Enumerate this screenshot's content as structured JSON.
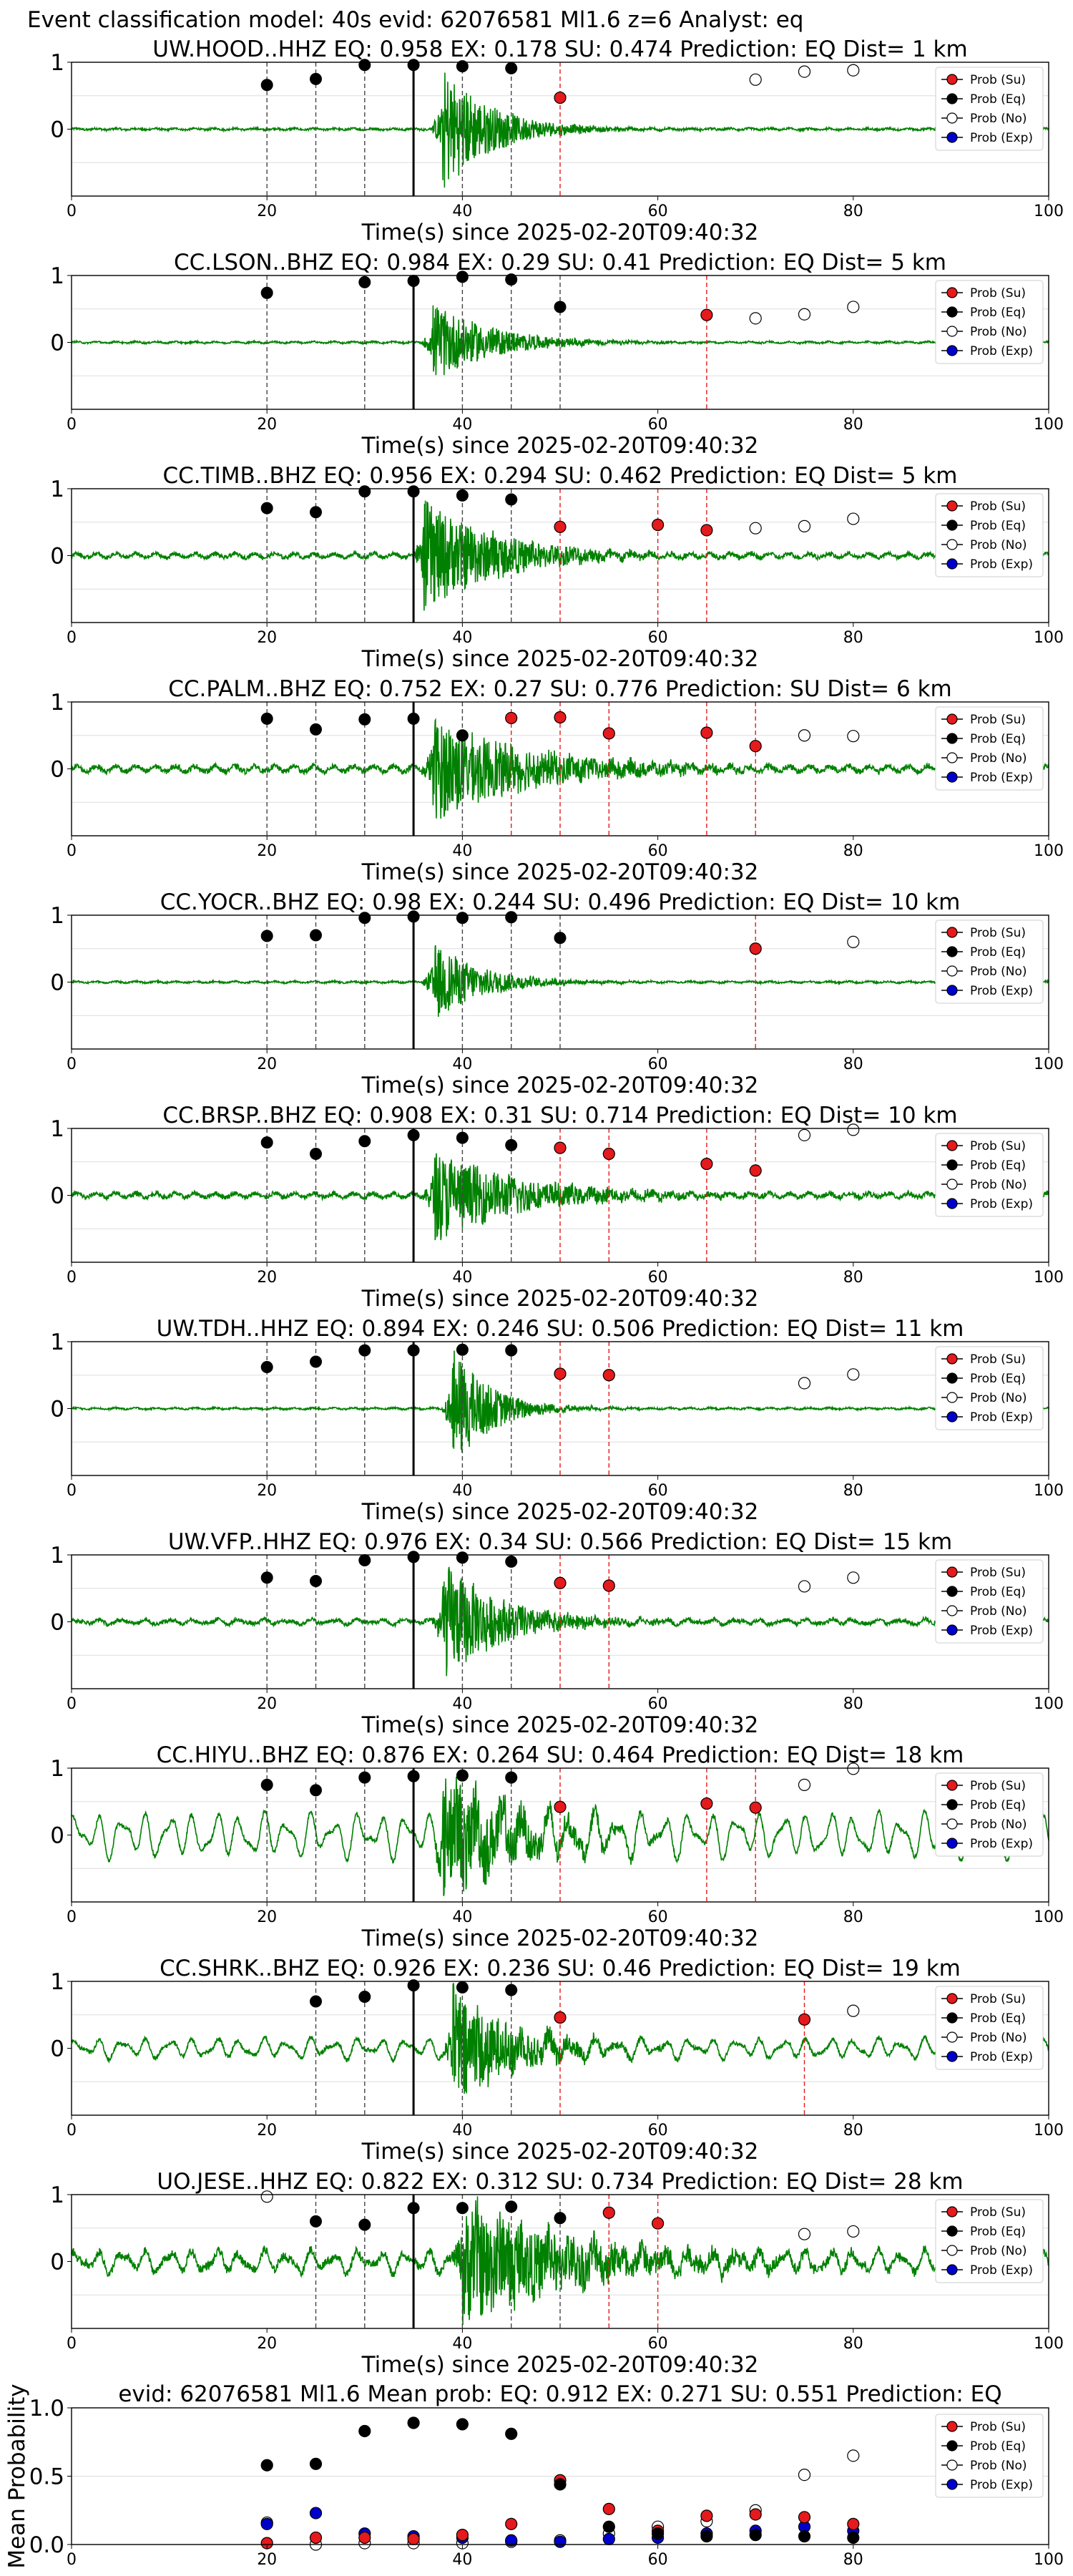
{
  "figure_title": "Event classification model: 40s evid: 62076581 Ml1.6 z=6 Analyst: eq",
  "legend": {
    "labels": [
      "Prob (Su)",
      "Prob (Eq)",
      "Prob (No)",
      "Prob (Exp)"
    ],
    "colors": [
      "#e41a1c",
      "#000000",
      "#ffffff",
      "#0000cc"
    ]
  },
  "colors": {
    "waveform": "#008000",
    "eq_marker": "#000000",
    "su_marker": "#e41a1c",
    "no_marker": "#ffffff",
    "exp_marker": "#0000cc",
    "grid": "#dddddd"
  },
  "chart_data": [
    {
      "type": "line",
      "title": "UW.HOOD..HHZ   EQ: 0.958  EX: 0.178  SU: 0.474   Prediction: EQ    Dist= 1 km",
      "xlabel": "Time(s) since 2025-02-20T09:40:32",
      "xlim": [
        0,
        100
      ],
      "ylim": [
        -1,
        1
      ],
      "xticks": [
        "0",
        "20",
        "40",
        "60",
        "80",
        "100"
      ],
      "yticks": [
        "1",
        "0"
      ],
      "pick_time": 35,
      "onset": 38,
      "amplitude": 0.95,
      "decay": 5,
      "noise": 0.015,
      "background": "flat",
      "bg_amp": 0.01,
      "eq_points": [
        [
          20,
          0.66
        ],
        [
          25,
          0.75
        ],
        [
          30,
          0.96
        ],
        [
          35,
          0.96
        ],
        [
          40,
          0.94
        ],
        [
          45,
          0.91
        ]
      ],
      "su_points": [
        [
          50,
          0.47
        ]
      ],
      "no_points": [
        [
          70,
          0.74
        ],
        [
          75,
          0.86
        ],
        [
          80,
          0.88
        ]
      ]
    },
    {
      "type": "line",
      "title": "CC.LSON..BHZ   EQ: 0.984  EX: 0.29  SU: 0.41   Prediction: EQ    Dist= 5 km",
      "xlabel": "Time(s) since 2025-02-20T09:40:32",
      "xlim": [
        0,
        100
      ],
      "ylim": [
        -1,
        1
      ],
      "xticks": [
        "0",
        "20",
        "40",
        "60",
        "80",
        "100"
      ],
      "yticks": [
        "1",
        "0"
      ],
      "pick_time": 35,
      "onset": 37,
      "amplitude": 0.6,
      "decay": 6,
      "noise": 0.012,
      "background": "flat",
      "bg_amp": 0.01,
      "eq_points": [
        [
          20,
          0.74
        ],
        [
          30,
          0.9
        ],
        [
          35,
          0.92
        ],
        [
          40,
          0.98
        ],
        [
          45,
          0.94
        ],
        [
          50,
          0.53
        ]
      ],
      "su_points": [
        [
          65,
          0.41
        ]
      ],
      "no_points": [
        [
          70,
          0.36
        ],
        [
          75,
          0.42
        ],
        [
          80,
          0.53
        ]
      ]
    },
    {
      "type": "line",
      "title": "CC.TIMB..BHZ   EQ: 0.956  EX: 0.294  SU: 0.462   Prediction: EQ    Dist= 5 km",
      "xlabel": "Time(s) since 2025-02-20T09:40:32",
      "xlim": [
        0,
        100
      ],
      "ylim": [
        -1,
        1
      ],
      "xticks": [
        "0",
        "20",
        "40",
        "60",
        "80",
        "100"
      ],
      "yticks": [
        "1",
        "0"
      ],
      "pick_time": 35,
      "onset": 36,
      "amplitude": 0.85,
      "decay": 8,
      "noise": 0.03,
      "background": "flat",
      "bg_amp": 0.03,
      "eq_points": [
        [
          20,
          0.71
        ],
        [
          25,
          0.65
        ],
        [
          30,
          0.96
        ],
        [
          35,
          0.96
        ],
        [
          40,
          0.9
        ],
        [
          45,
          0.84
        ]
      ],
      "su_points": [
        [
          50,
          0.43
        ],
        [
          60,
          0.46
        ],
        [
          65,
          0.38
        ]
      ],
      "no_points": [
        [
          70,
          0.41
        ],
        [
          75,
          0.44
        ],
        [
          80,
          0.55
        ]
      ]
    },
    {
      "type": "line",
      "title": "CC.PALM..BHZ   EQ: 0.752  EX: 0.27  SU: 0.776   Prediction: SU    Dist= 6 km",
      "xlabel": "Time(s) since 2025-02-20T09:40:32",
      "xlim": [
        0,
        100
      ],
      "ylim": [
        -1,
        1
      ],
      "xticks": [
        "0",
        "20",
        "40",
        "60",
        "80",
        "100"
      ],
      "yticks": [
        "1",
        "0"
      ],
      "pick_time": 35,
      "onset": 37,
      "amplitude": 0.8,
      "decay": 10,
      "noise": 0.04,
      "background": "flat",
      "bg_amp": 0.04,
      "eq_points": [
        [
          20,
          0.75
        ],
        [
          25,
          0.59
        ],
        [
          30,
          0.74
        ],
        [
          35,
          0.75
        ],
        [
          40,
          0.5
        ]
      ],
      "su_points": [
        [
          45,
          0.76
        ],
        [
          50,
          0.77
        ],
        [
          55,
          0.53
        ],
        [
          65,
          0.54
        ],
        [
          70,
          0.34
        ]
      ],
      "no_points": [
        [
          75,
          0.5
        ],
        [
          80,
          0.49
        ]
      ]
    },
    {
      "type": "line",
      "title": "CC.YOCR..BHZ   EQ: 0.98  EX: 0.244  SU: 0.496   Prediction: EQ    Dist= 10 km",
      "xlabel": "Time(s) since 2025-02-20T09:40:32",
      "xlim": [
        0,
        100
      ],
      "ylim": [
        -1,
        1
      ],
      "xticks": [
        "0",
        "20",
        "40",
        "60",
        "80",
        "100"
      ],
      "yticks": [
        "1",
        "0"
      ],
      "pick_time": 35,
      "onset": 37,
      "amplitude": 0.6,
      "decay": 5,
      "noise": 0.012,
      "background": "flat",
      "bg_amp": 0.01,
      "eq_points": [
        [
          20,
          0.69
        ],
        [
          25,
          0.7
        ],
        [
          30,
          0.96
        ],
        [
          35,
          0.98
        ],
        [
          40,
          0.96
        ],
        [
          45,
          0.97
        ],
        [
          50,
          0.66
        ]
      ],
      "su_points": [
        [
          70,
          0.5
        ]
      ],
      "no_points": [
        [
          80,
          0.6
        ]
      ]
    },
    {
      "type": "line",
      "title": "CC.BRSP..BHZ   EQ: 0.908  EX: 0.31  SU: 0.714   Prediction: EQ    Dist= 10 km",
      "xlabel": "Time(s) since 2025-02-20T09:40:32",
      "xlim": [
        0,
        100
      ],
      "ylim": [
        -1,
        1
      ],
      "xticks": [
        "0",
        "20",
        "40",
        "60",
        "80",
        "100"
      ],
      "yticks": [
        "1",
        "0"
      ],
      "pick_time": 35,
      "onset": 37,
      "amplitude": 0.7,
      "decay": 9,
      "noise": 0.035,
      "background": "flat",
      "bg_amp": 0.03,
      "eq_points": [
        [
          20,
          0.79
        ],
        [
          25,
          0.62
        ],
        [
          30,
          0.81
        ],
        [
          35,
          0.9
        ],
        [
          40,
          0.86
        ],
        [
          45,
          0.75
        ]
      ],
      "su_points": [
        [
          50,
          0.71
        ],
        [
          55,
          0.62
        ],
        [
          65,
          0.47
        ],
        [
          70,
          0.37
        ]
      ],
      "no_points": [
        [
          75,
          0.9
        ],
        [
          80,
          0.98
        ]
      ]
    },
    {
      "type": "line",
      "title": "UW.TDH..HHZ   EQ: 0.894  EX: 0.246  SU: 0.506   Prediction: EQ    Dist= 11 km",
      "xlabel": "Time(s) since 2025-02-20T09:40:32",
      "xlim": [
        0,
        100
      ],
      "ylim": [
        -1,
        1
      ],
      "xticks": [
        "0",
        "20",
        "40",
        "60",
        "80",
        "100"
      ],
      "yticks": [
        "1",
        "0"
      ],
      "pick_time": 35,
      "onset": 39,
      "amplitude": 0.9,
      "decay": 4,
      "noise": 0.012,
      "background": "flat",
      "bg_amp": 0.01,
      "eq_points": [
        [
          20,
          0.62
        ],
        [
          25,
          0.7
        ],
        [
          30,
          0.87
        ],
        [
          35,
          0.87
        ],
        [
          40,
          0.88
        ],
        [
          45,
          0.87
        ]
      ],
      "su_points": [
        [
          50,
          0.52
        ],
        [
          55,
          0.5
        ]
      ],
      "no_points": [
        [
          75,
          0.38
        ],
        [
          80,
          0.51
        ]
      ]
    },
    {
      "type": "line",
      "title": "UW.VFP..HHZ   EQ: 0.976  EX: 0.34  SU: 0.566   Prediction: EQ    Dist= 15 km",
      "xlabel": "Time(s) since 2025-02-20T09:40:32",
      "xlim": [
        0,
        100
      ],
      "ylim": [
        -1,
        1
      ],
      "xticks": [
        "0",
        "20",
        "40",
        "60",
        "80",
        "100"
      ],
      "yticks": [
        "1",
        "0"
      ],
      "pick_time": 35,
      "onset": 38,
      "amplitude": 0.9,
      "decay": 6,
      "noise": 0.03,
      "background": "wavy",
      "bg_amp": 0.05,
      "eq_points": [
        [
          20,
          0.66
        ],
        [
          25,
          0.61
        ],
        [
          30,
          0.92
        ],
        [
          35,
          0.97
        ],
        [
          40,
          0.96
        ],
        [
          45,
          0.9
        ]
      ],
      "su_points": [
        [
          50,
          0.58
        ],
        [
          55,
          0.54
        ]
      ],
      "no_points": [
        [
          75,
          0.53
        ],
        [
          80,
          0.66
        ]
      ]
    },
    {
      "type": "line",
      "title": "CC.HIYU..BHZ   EQ: 0.876  EX: 0.264  SU: 0.464   Prediction: EQ    Dist= 18 km",
      "xlabel": "Time(s) since 2025-02-20T09:40:32",
      "xlim": [
        0,
        100
      ],
      "ylim": [
        -1,
        1
      ],
      "xticks": [
        "0",
        "20",
        "40",
        "60",
        "80",
        "100"
      ],
      "yticks": [
        "1",
        "0"
      ],
      "pick_time": 35,
      "onset": 38,
      "amplitude": 0.95,
      "decay": 7,
      "noise": 0.03,
      "background": "wavy",
      "bg_amp": 0.4,
      "eq_points": [
        [
          20,
          0.75
        ],
        [
          25,
          0.67
        ],
        [
          30,
          0.86
        ],
        [
          35,
          0.88
        ],
        [
          40,
          0.89
        ],
        [
          45,
          0.86
        ]
      ],
      "su_points": [
        [
          50,
          0.42
        ],
        [
          65,
          0.47
        ],
        [
          70,
          0.41
        ]
      ],
      "no_points": [
        [
          75,
          0.75
        ],
        [
          80,
          0.99
        ]
      ]
    },
    {
      "type": "line",
      "title": "CC.SHRK..BHZ   EQ: 0.926  EX: 0.236  SU: 0.46   Prediction: EQ    Dist= 19 km",
      "xlabel": "Time(s) since 2025-02-20T09:40:32",
      "xlim": [
        0,
        100
      ],
      "ylim": [
        -1,
        1
      ],
      "xticks": [
        "0",
        "20",
        "40",
        "60",
        "80",
        "100"
      ],
      "yticks": [
        "1",
        "0"
      ],
      "pick_time": 35,
      "onset": 39,
      "amplitude": 0.95,
      "decay": 6,
      "noise": 0.03,
      "background": "wavy",
      "bg_amp": 0.18,
      "eq_points": [
        [
          25,
          0.7
        ],
        [
          30,
          0.77
        ],
        [
          35,
          0.94
        ],
        [
          40,
          0.91
        ],
        [
          45,
          0.87
        ]
      ],
      "su_points": [
        [
          50,
          0.46
        ],
        [
          75,
          0.43
        ]
      ],
      "no_points": [
        [
          80,
          0.56
        ]
      ]
    },
    {
      "type": "line",
      "title": "UO.JESE..HHZ   EQ: 0.822  EX: 0.312  SU: 0.734   Prediction: EQ    Dist= 28 km",
      "xlabel": "Time(s) since 2025-02-20T09:40:32",
      "xlim": [
        0,
        100
      ],
      "ylim": [
        -1,
        1
      ],
      "xticks": [
        "0",
        "20",
        "40",
        "60",
        "80",
        "100"
      ],
      "yticks": [
        "1",
        "0"
      ],
      "pick_time": 35,
      "onset": 40,
      "amplitude": 0.95,
      "decay": 12,
      "noise": 0.06,
      "background": "wavy",
      "bg_amp": 0.2,
      "eq_points": [
        [
          25,
          0.6
        ],
        [
          30,
          0.55
        ],
        [
          35,
          0.8
        ],
        [
          40,
          0.8
        ],
        [
          45,
          0.82
        ],
        [
          50,
          0.65
        ]
      ],
      "su_points": [
        [
          55,
          0.73
        ],
        [
          60,
          0.57
        ]
      ],
      "no_points": [
        [
          20,
          0.97
        ],
        [
          75,
          0.41
        ],
        [
          80,
          0.45
        ]
      ]
    },
    {
      "type": "scatter",
      "title": "evid: 62076581  Ml1.6   Mean prob:   EQ: 0.912  EX: 0.271  SU: 0.551   Prediction: EQ",
      "ylabel": "Mean Probability",
      "xlim": [
        0,
        100
      ],
      "ylim": [
        0,
        1
      ],
      "xticks": [
        "0",
        "20",
        "40",
        "60",
        "80",
        "100"
      ],
      "yticks": [
        "0.0",
        "0.5",
        "1.0"
      ],
      "eq_points": [
        [
          20,
          0.58
        ],
        [
          25,
          0.59
        ],
        [
          30,
          0.83
        ],
        [
          35,
          0.89
        ],
        [
          40,
          0.88
        ],
        [
          45,
          0.81
        ],
        [
          50,
          0.44
        ],
        [
          55,
          0.13
        ],
        [
          60,
          0.08
        ],
        [
          65,
          0.06
        ],
        [
          70,
          0.07
        ],
        [
          75,
          0.06
        ],
        [
          80,
          0.05
        ]
      ],
      "su_points": [
        [
          20,
          0.01
        ],
        [
          25,
          0.05
        ],
        [
          30,
          0.05
        ],
        [
          35,
          0.04
        ],
        [
          40,
          0.07
        ],
        [
          45,
          0.15
        ],
        [
          50,
          0.47
        ],
        [
          55,
          0.26
        ],
        [
          60,
          0.1
        ],
        [
          65,
          0.21
        ],
        [
          70,
          0.22
        ],
        [
          75,
          0.2
        ],
        [
          80,
          0.15
        ]
      ],
      "no_points": [
        [
          20,
          0.16
        ],
        [
          25,
          0.0
        ],
        [
          30,
          0.01
        ],
        [
          35,
          0.01
        ],
        [
          40,
          0.01
        ],
        [
          45,
          0.02
        ],
        [
          50,
          0.03
        ],
        [
          55,
          0.08
        ],
        [
          60,
          0.13
        ],
        [
          65,
          0.17
        ],
        [
          70,
          0.25
        ],
        [
          75,
          0.51
        ],
        [
          80,
          0.65
        ]
      ],
      "exp_points": [
        [
          20,
          0.15
        ],
        [
          25,
          0.23
        ],
        [
          30,
          0.08
        ],
        [
          35,
          0.06
        ],
        [
          40,
          0.05
        ],
        [
          45,
          0.03
        ],
        [
          50,
          0.02
        ],
        [
          55,
          0.04
        ],
        [
          60,
          0.05
        ],
        [
          65,
          0.08
        ],
        [
          70,
          0.1
        ],
        [
          75,
          0.13
        ],
        [
          80,
          0.1
        ]
      ]
    }
  ]
}
